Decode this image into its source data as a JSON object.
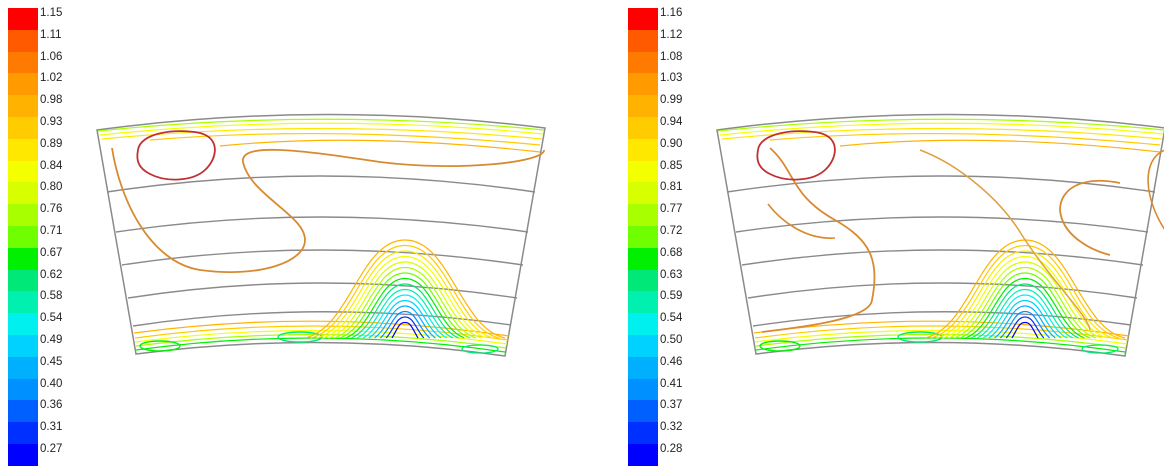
{
  "panels": [
    {
      "legend_values": [
        "1.15",
        "1.11",
        "1.06",
        "1.02",
        "0.98",
        "0.93",
        "0.89",
        "0.84",
        "0.80",
        "0.76",
        "0.71",
        "0.67",
        "0.62",
        "0.58",
        "0.54",
        "0.49",
        "0.45",
        "0.40",
        "0.36",
        "0.31",
        "0.27"
      ]
    },
    {
      "legend_values": [
        "1.16",
        "1.12",
        "1.08",
        "1.03",
        "0.99",
        "0.94",
        "0.90",
        "0.85",
        "0.81",
        "0.77",
        "0.72",
        "0.68",
        "0.63",
        "0.59",
        "0.54",
        "0.50",
        "0.46",
        "0.41",
        "0.37",
        "0.32",
        "0.28"
      ]
    }
  ],
  "colors": [
    "#ff0000",
    "#ff5a00",
    "#ff7a00",
    "#ff9a00",
    "#ffb300",
    "#ffcc00",
    "#ffe800",
    "#f4ff00",
    "#d8ff00",
    "#a8ff00",
    "#70ff00",
    "#00f000",
    "#00e878",
    "#00f0b0",
    "#00f0f0",
    "#00d2ff",
    "#00b0ff",
    "#0090ff",
    "#0060ff",
    "#0030ff",
    "#0000ff"
  ],
  "line_colors": {
    "grid": "#8a8a8a",
    "high": "#c03030",
    "mid": "#d88a30",
    "orange": "#e0a040"
  }
}
